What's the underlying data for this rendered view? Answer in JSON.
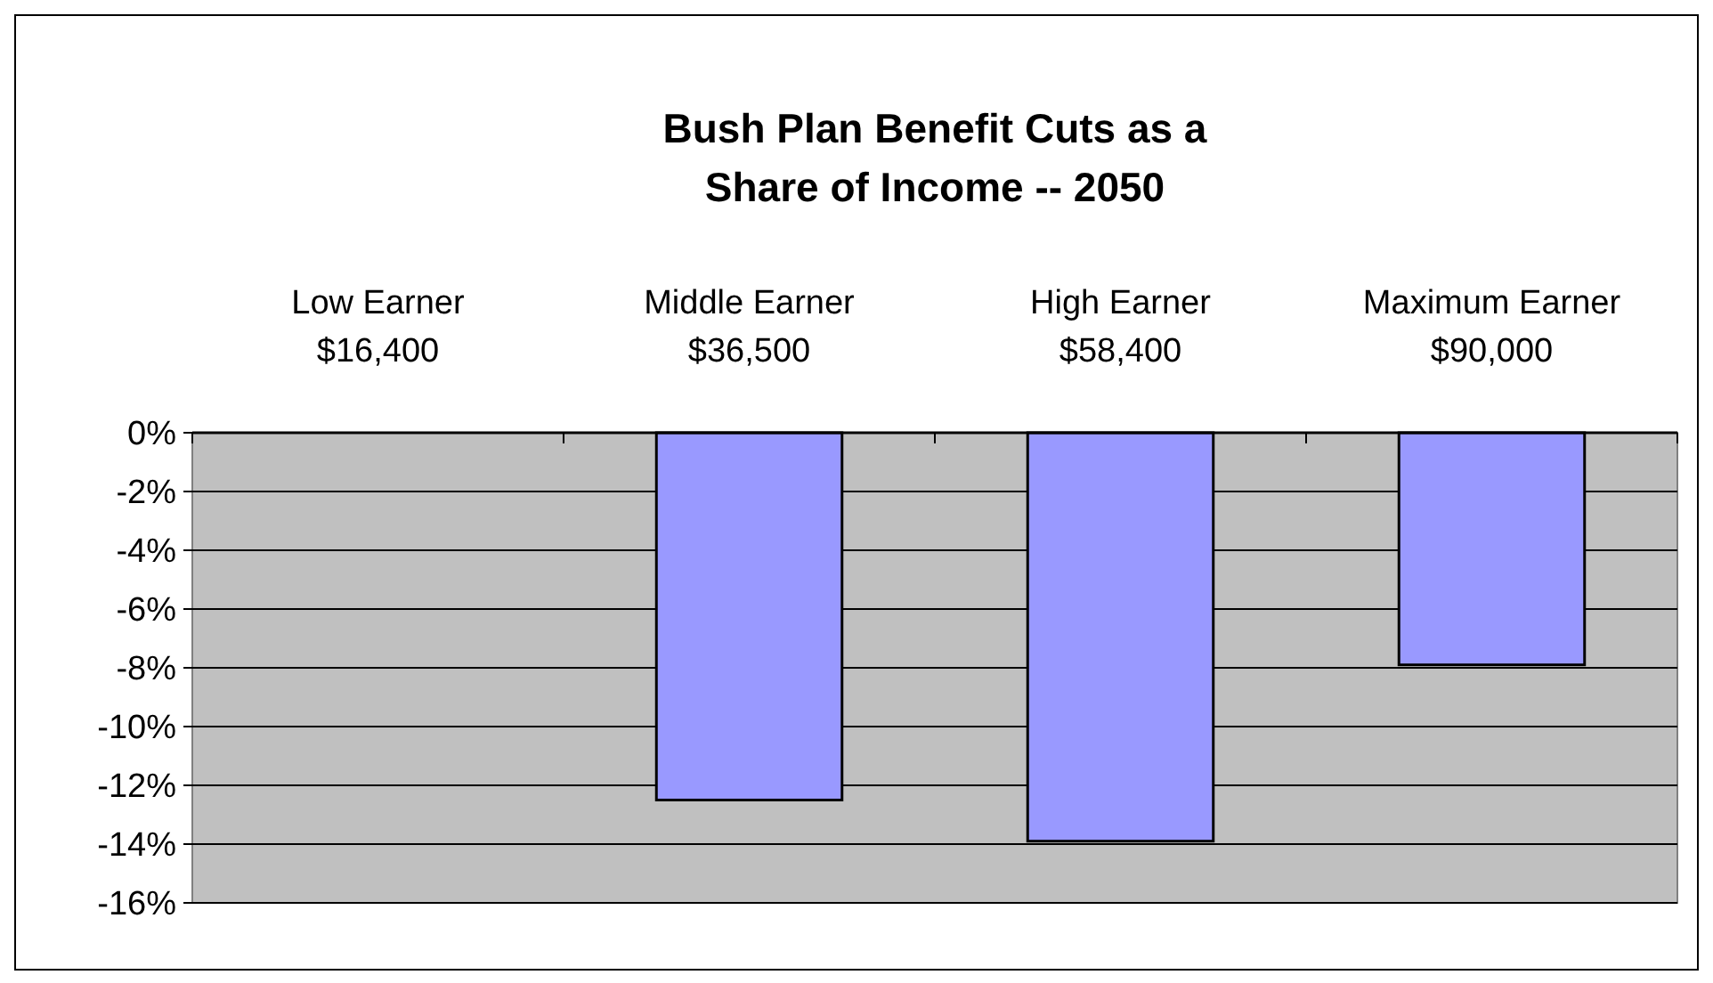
{
  "chart_data": {
    "type": "bar",
    "title": "Bush Plan Benefit Cuts as a\nShare of Income -- 2050",
    "categories": [
      "Low Earner\n$16,400",
      "Middle Earner\n$36,500",
      "High Earner\n$58,400",
      "Maximum Earner\n$90,000"
    ],
    "values": [
      0,
      -12.5,
      -13.9,
      -7.9
    ],
    "color": "#9999ff",
    "ylim": [
      -16,
      0
    ],
    "yticks": [
      {
        "value": 0,
        "label": "0%"
      },
      {
        "value": -2,
        "label": "-2%"
      },
      {
        "value": -4,
        "label": "-4%"
      },
      {
        "value": -6,
        "label": "-6%"
      },
      {
        "value": -8,
        "label": "-8%"
      },
      {
        "value": -10,
        "label": "-10%"
      },
      {
        "value": -12,
        "label": "-12%"
      },
      {
        "value": -14,
        "label": "-14%"
      },
      {
        "value": -16,
        "label": "-16%"
      }
    ],
    "grid": "y"
  }
}
